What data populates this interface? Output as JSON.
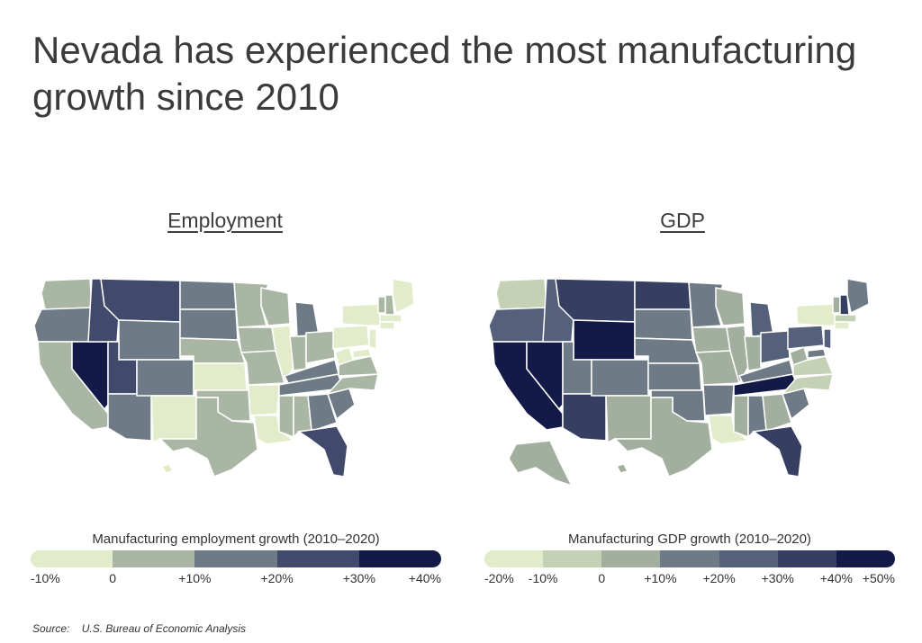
{
  "title": "Nevada has experienced the most manufacturing growth since 2010",
  "source": {
    "label": "Source:",
    "text": "U.S. Bureau of Economic Analysis"
  },
  "maps": [
    {
      "heading": "Employment",
      "legend_title": "Manufacturing employment growth (2010–2020)",
      "legend_ticks": [
        "-10%",
        "0",
        "+10%",
        "+20%",
        "+30%",
        "+40%"
      ],
      "legend_colors": [
        "#e2ecca",
        "#a9b6a3",
        "#6e7b86",
        "#424a6c",
        "#141a48"
      ],
      "states": {
        "WA": "#a9b6a3",
        "OR": "#6e7b86",
        "ID": "#424a6c",
        "MT": "#424a6c",
        "WY": "#6e7b86",
        "ND": "#6e7b86",
        "SD": "#6e7b86",
        "NE": "#a9b6a3",
        "KS": "#e2ecca",
        "CO": "#6e7b86",
        "UT": "#424a6c",
        "NV": "#141a48",
        "CA": "#a9b6a3",
        "AZ": "#6e7b86",
        "NM": "#e2ecca",
        "TX": "#a9b6a3",
        "OK": "#a9b6a3",
        "MN": "#a9b6a3",
        "IA": "#a9b6a3",
        "MO": "#a9b6a3",
        "AR": "#e2ecca",
        "LA": "#e2ecca",
        "WI": "#a9b6a3",
        "IL": "#e2ecca",
        "MI": "#6e7b86",
        "IN": "#a9b6a3",
        "OH": "#a9b6a3",
        "KY": "#6e7b86",
        "TN": "#6e7b86",
        "MS": "#a9b6a3",
        "AL": "#a9b6a3",
        "GA": "#6e7b86",
        "FL": "#424a6c",
        "SC": "#6e7b86",
        "NC": "#a9b6a3",
        "VA": "#a9b6a3",
        "WV": "#e2ecca",
        "PA": "#e2ecca",
        "NY": "#e2ecca",
        "VT": "#a9b6a3",
        "NH": "#a9b6a3",
        "ME": "#e2ecca",
        "MA": "#e2ecca",
        "CT": "#e2ecca",
        "NJ": "#e2ecca",
        "MD": "#e2ecca",
        "HI": "#e2ecca"
      }
    },
    {
      "heading": "GDP",
      "legend_title": "Manufacturing GDP growth (2010–2020)",
      "legend_ticks": [
        "-20%",
        "-10%",
        "0",
        "+10%",
        "+20%",
        "+30%",
        "+40%",
        "+50%"
      ],
      "legend_colors": [
        "#e2ecca",
        "#c4d1b4",
        "#a3af9e",
        "#6e7b86",
        "#55607a",
        "#363e62",
        "#141a48"
      ],
      "states": {
        "WA": "#c4d1b4",
        "OR": "#55607a",
        "ID": "#55607a",
        "MT": "#363e62",
        "WY": "#141a48",
        "ND": "#363e62",
        "SD": "#6e7b86",
        "NE": "#6e7b86",
        "KS": "#6e7b86",
        "CO": "#6e7b86",
        "UT": "#6e7b86",
        "NV": "#141a48",
        "CA": "#141a48",
        "AZ": "#363e62",
        "NM": "#a3af9e",
        "TX": "#a3af9e",
        "OK": "#6e7b86",
        "MN": "#6e7b86",
        "IA": "#a3af9e",
        "MO": "#a3af9e",
        "AR": "#6e7b86",
        "LA": "#e2ecca",
        "WI": "#a3af9e",
        "IL": "#a3af9e",
        "MI": "#55607a",
        "IN": "#a3af9e",
        "OH": "#55607a",
        "KY": "#6e7b86",
        "TN": "#141a48",
        "MS": "#a3af9e",
        "AL": "#6e7b86",
        "GA": "#a3af9e",
        "FL": "#363e62",
        "SC": "#6e7b86",
        "NC": "#c4d1b4",
        "VA": "#c4d1b4",
        "WV": "#a3af9e",
        "PA": "#55607a",
        "NY": "#e2ecca",
        "VT": "#a3af9e",
        "NH": "#363e62",
        "ME": "#6e7b86",
        "MA": "#c4d1b4",
        "CT": "#e2ecca",
        "NJ": "#55607a",
        "MD": "#6e7b86",
        "HI": "#a3af9e",
        "AK": "#a3af9e"
      }
    }
  ]
}
